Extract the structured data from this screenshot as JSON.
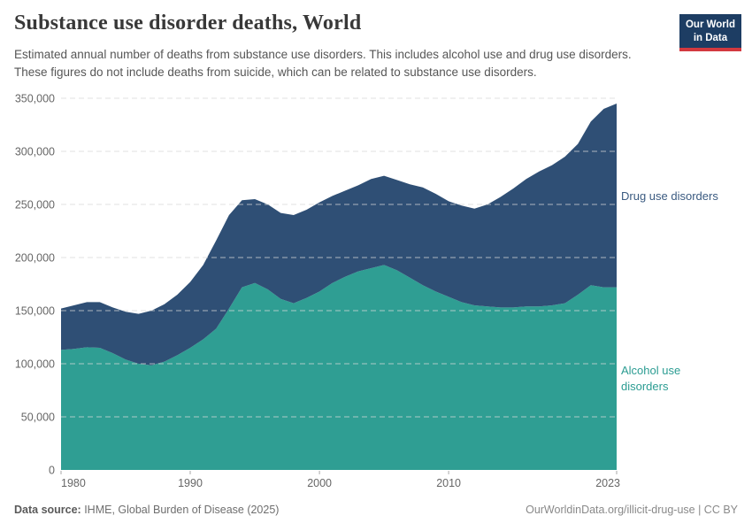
{
  "header": {
    "title": "Substance use disorder deaths, World",
    "subtitle": "Estimated annual number of deaths from substance use disorders. This includes alcohol use and drug use disorders. These figures do not include deaths from suicide, which can be related to substance use disorders.",
    "logo": {
      "line1": "Our World",
      "line2": "in Data",
      "bg_color": "#1d3d63",
      "bar_color": "#d3393f"
    }
  },
  "chart_data": {
    "type": "area",
    "stacked": true,
    "title": "Substance use disorder deaths, World",
    "xlabel": "",
    "ylabel": "",
    "xlim": [
      1980,
      2023
    ],
    "ylim": [
      0,
      350000
    ],
    "grid": "horizontal-dashed",
    "legend_position": "right-edge-labels",
    "xticks": [
      1980,
      1990,
      2000,
      2010,
      2023
    ],
    "yticks": [
      0,
      50000,
      100000,
      150000,
      200000,
      250000,
      300000,
      350000
    ],
    "x": [
      1980,
      1981,
      1982,
      1983,
      1984,
      1985,
      1986,
      1987,
      1988,
      1989,
      1990,
      1991,
      1992,
      1993,
      1994,
      1995,
      1996,
      1997,
      1998,
      1999,
      2000,
      2001,
      2002,
      2003,
      2004,
      2005,
      2006,
      2007,
      2008,
      2009,
      2010,
      2011,
      2012,
      2013,
      2014,
      2015,
      2016,
      2017,
      2018,
      2019,
      2020,
      2021,
      2022,
      2023
    ],
    "series": [
      {
        "name": "Alcohol use disorders",
        "color": "#2f9e93",
        "label_color": "#2b9c92",
        "values": [
          113000,
          114000,
          115500,
          115000,
          110000,
          104000,
          100000,
          98500,
          102000,
          108000,
          115000,
          123000,
          133000,
          152000,
          172000,
          176000,
          170000,
          161000,
          157000,
          162000,
          168000,
          176000,
          182000,
          187000,
          190000,
          193000,
          188000,
          181000,
          174000,
          168000,
          163000,
          158000,
          155000,
          154000,
          153000,
          153000,
          154000,
          154000,
          155000,
          157000,
          165000,
          174000,
          172000,
          172000
        ]
      },
      {
        "name": "Drug use disorders",
        "color": "#2f4f75",
        "label_color": "#3a5a80",
        "values": [
          39000,
          41000,
          42500,
          43000,
          43000,
          45000,
          47000,
          51500,
          54000,
          57000,
          62000,
          70000,
          83000,
          88000,
          82000,
          79000,
          80000,
          81000,
          83000,
          83000,
          84000,
          82000,
          81000,
          81000,
          84000,
          84000,
          85000,
          88000,
          92000,
          92000,
          90000,
          91000,
          91000,
          96000,
          104000,
          112000,
          120000,
          127000,
          132000,
          138000,
          142000,
          154000,
          168000,
          173000
        ]
      }
    ],
    "axis_text_color": "#666666",
    "gridline_color": "#d8d8d8"
  },
  "footer": {
    "source_label": "Data source:",
    "source_value": " IHME, Global Burden of Disease (2025)",
    "license": "OurWorldinData.org/illicit-drug-use | CC BY"
  }
}
